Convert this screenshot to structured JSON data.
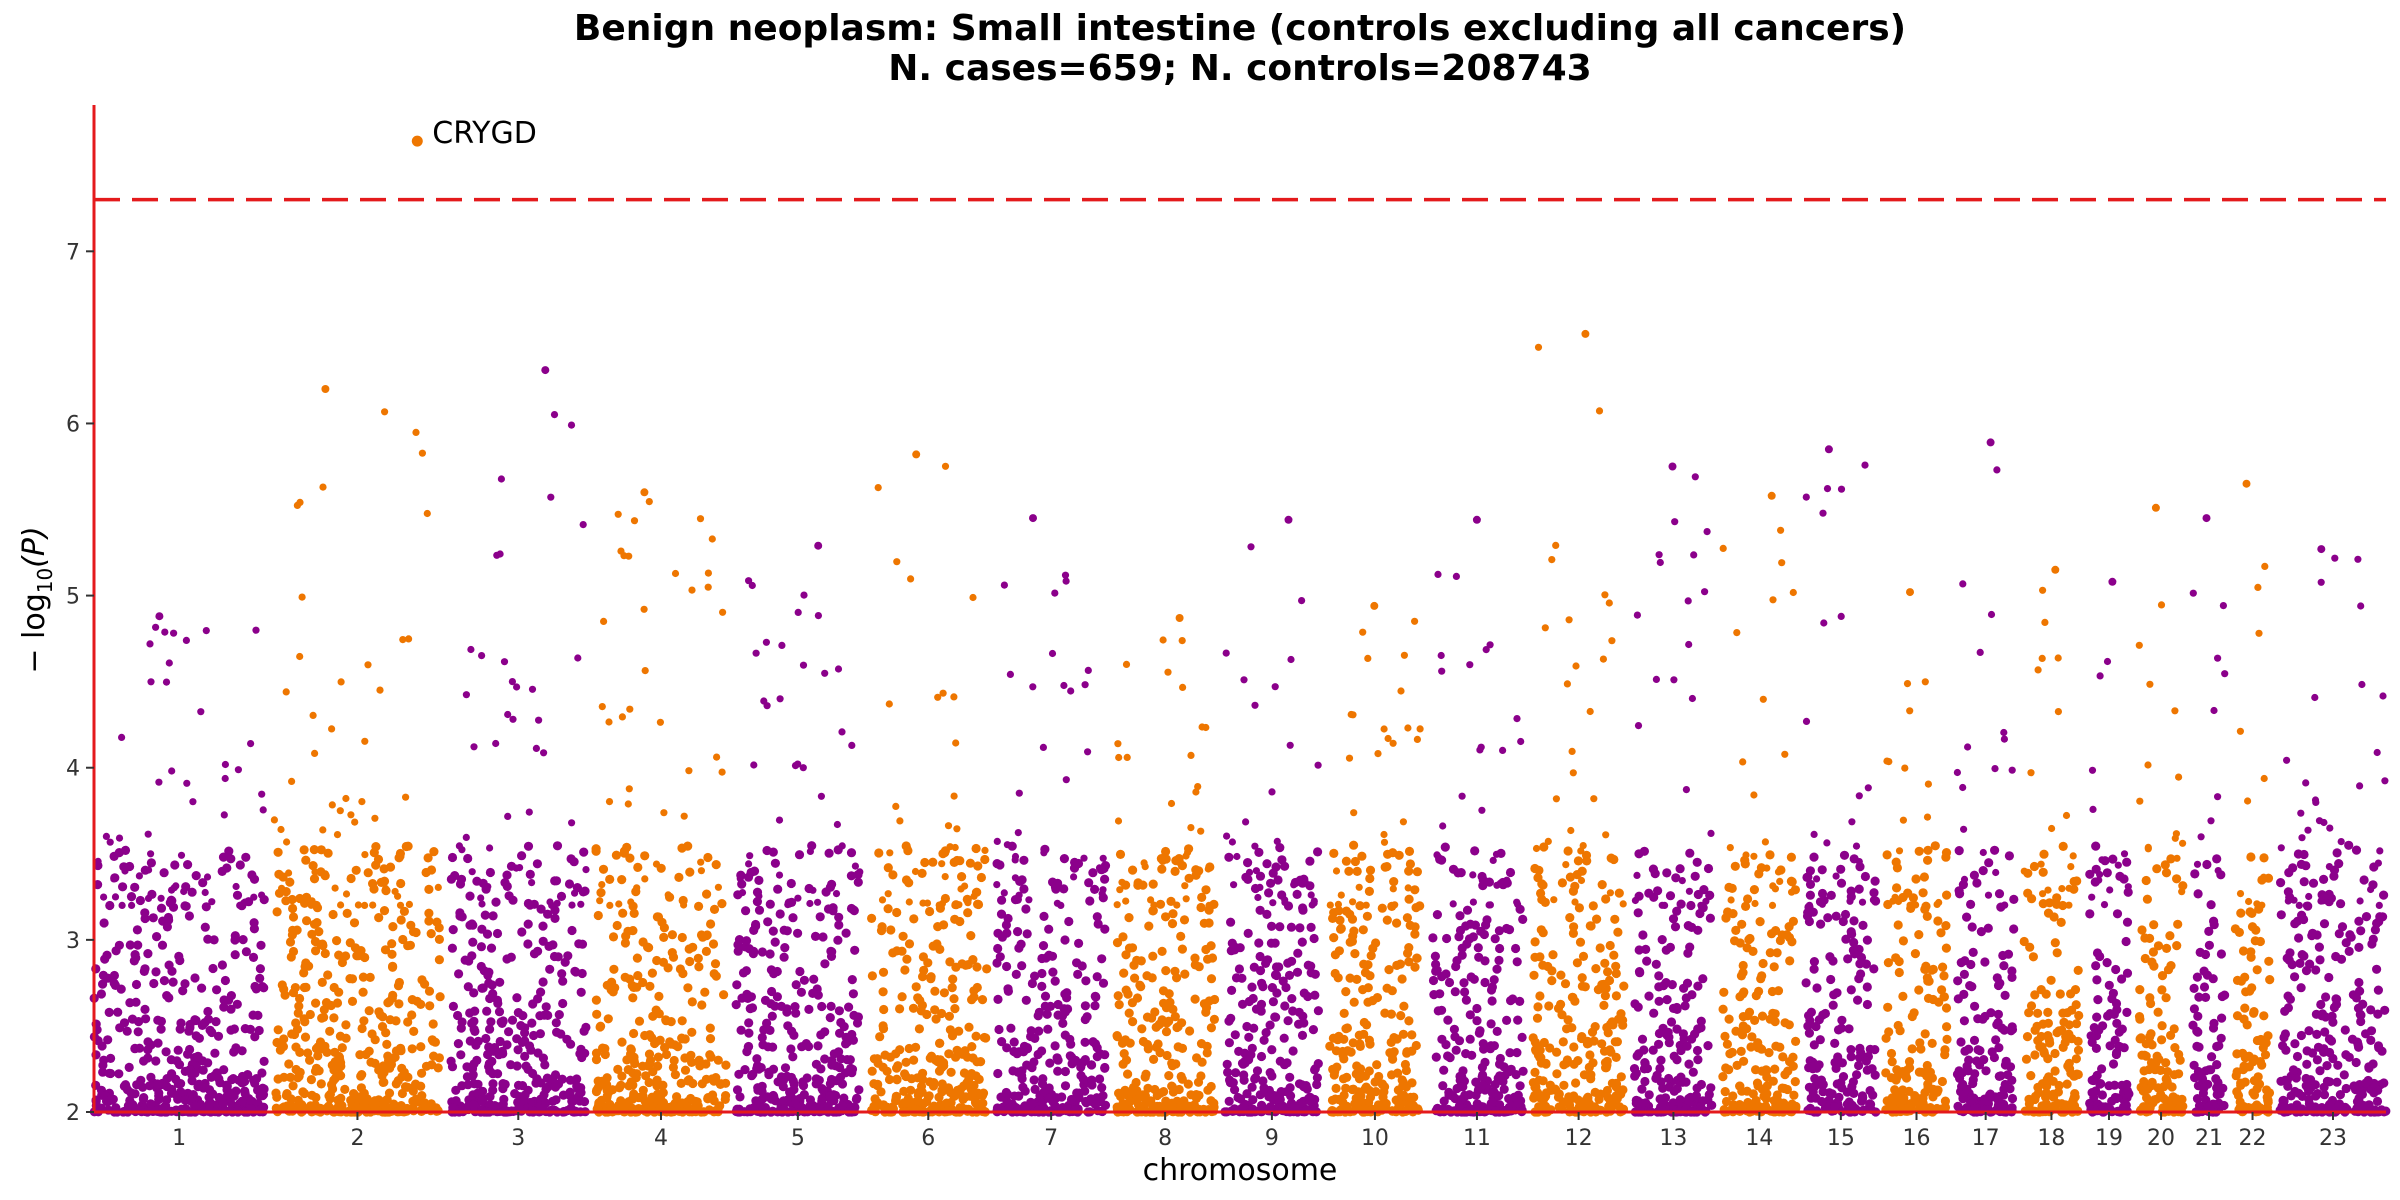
{
  "chart_data": {
    "type": "scatter",
    "subtype": "manhattan",
    "title": "Benign neoplasm: Small intestine (controls excluding all cancers)",
    "subtitle": "N. cases=659; N. controls=208743",
    "xlabel": "chromosome",
    "ylabel": "− log10(P)",
    "ylabel_main": "− log",
    "ylabel_sub": "10",
    "ylabel_tail": "(P)",
    "ylim": [
      2,
      7.85
    ],
    "yticks": [
      2,
      3,
      4,
      5,
      6,
      7
    ],
    "significance_line": 7.3,
    "colors": {
      "odd": "#8B008B",
      "even": "#EE7600",
      "threshold": "#E41A1C",
      "axis": "#E41A1C"
    },
    "grid": false,
    "legend": "none",
    "chromosomes": [
      {
        "label": "1",
        "length": 249,
        "peak": 4.88
      },
      {
        "label": "2",
        "length": 243,
        "peak": 6.2
      },
      {
        "label": "3",
        "length": 198,
        "peak": 6.31
      },
      {
        "label": "4",
        "length": 190,
        "peak": 5.6
      },
      {
        "label": "5",
        "length": 181,
        "peak": 5.29
      },
      {
        "label": "6",
        "length": 171,
        "peak": 5.82
      },
      {
        "label": "7",
        "length": 159,
        "peak": 5.45
      },
      {
        "label": "8",
        "length": 145,
        "peak": 4.87
      },
      {
        "label": "9",
        "length": 138,
        "peak": 5.44
      },
      {
        "label": "10",
        "length": 134,
        "peak": 4.94
      },
      {
        "label": "11",
        "length": 135,
        "peak": 5.44
      },
      {
        "label": "12",
        "length": 133,
        "peak": 6.52
      },
      {
        "label": "13",
        "length": 115,
        "peak": 5.75
      },
      {
        "label": "14",
        "length": 107,
        "peak": 5.58
      },
      {
        "label": "15",
        "length": 102,
        "peak": 5.85
      },
      {
        "label": "16",
        "length": 90,
        "peak": 5.02
      },
      {
        "label": "17",
        "length": 83,
        "peak": 5.89
      },
      {
        "label": "18",
        "length": 80,
        "peak": 5.15
      },
      {
        "label": "19",
        "length": 59,
        "peak": 5.08
      },
      {
        "label": "20",
        "length": 64,
        "peak": 5.51
      },
      {
        "label": "21",
        "length": 47,
        "peak": 5.45
      },
      {
        "label": "22",
        "length": 51,
        "peak": 5.65
      },
      {
        "label": "23",
        "length": 155,
        "peak": 5.27
      }
    ],
    "highlighted_points": [
      {
        "label": "CRYGD",
        "chromosome": "2",
        "position_fraction": 0.86,
        "y": 7.64
      }
    ]
  }
}
